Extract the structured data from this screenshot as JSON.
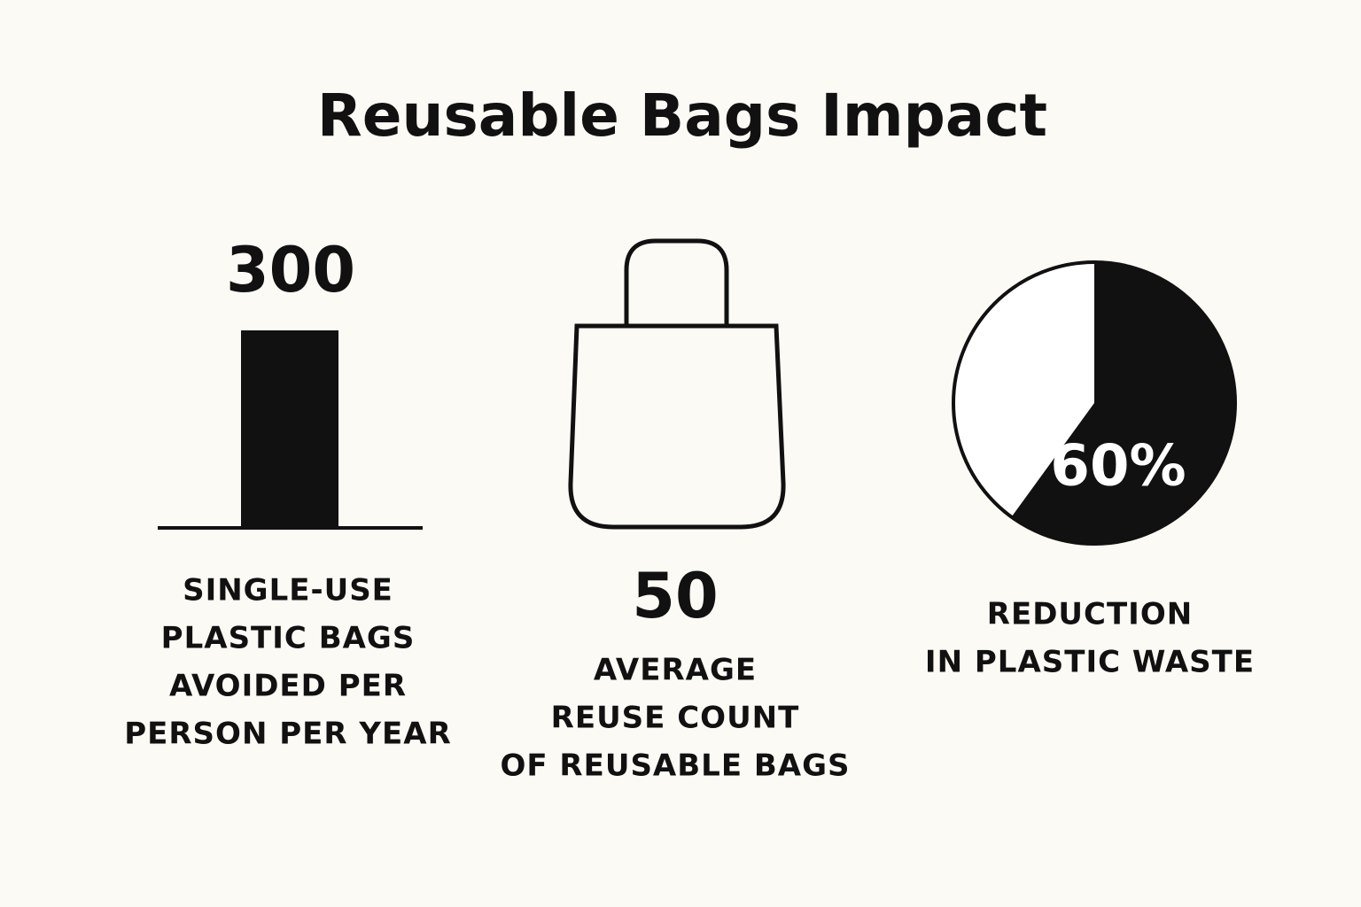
{
  "title": "Reusable Bags Impact",
  "stats": [
    {
      "value": 300,
      "label_lines": [
        "SINGLE-USE",
        "PLASTIC BAGS",
        "AVOIDED PER",
        "PERSON PER YEAR"
      ]
    },
    {
      "value": 50,
      "label_lines": [
        "AVERAGE",
        "REUSE COUNT",
        "OF REUSABLE BAGS"
      ]
    },
    {
      "value": 60,
      "value_label": "60%",
      "label_lines": [
        "REDUCTION",
        "IN PLASTIC WASTE"
      ]
    }
  ]
}
